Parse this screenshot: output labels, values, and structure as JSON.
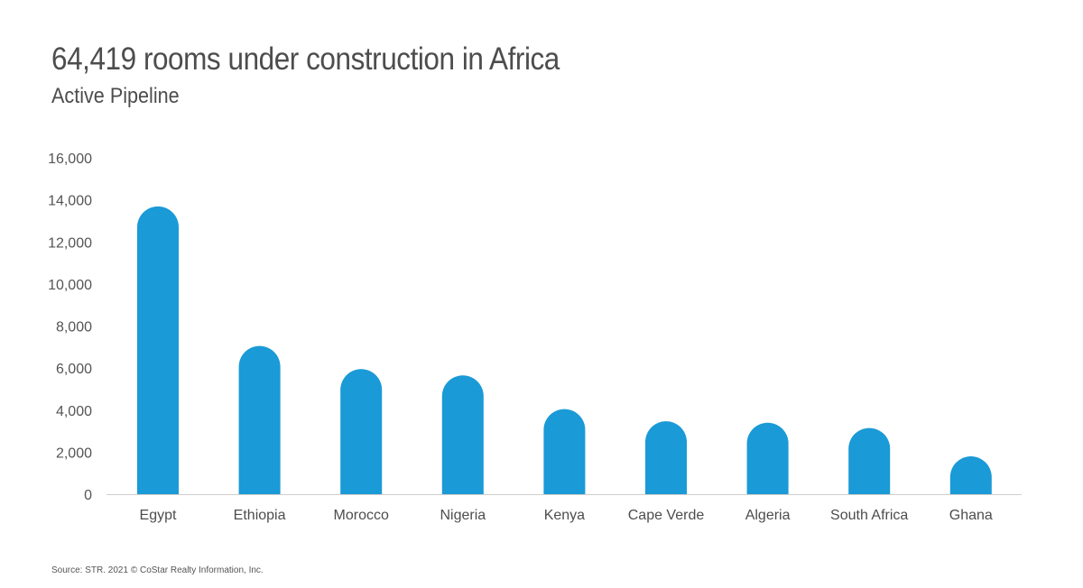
{
  "chart_data": {
    "type": "bar",
    "title": "64,419 rooms under construction in Africa",
    "subtitle": "Active Pipeline",
    "xlabel": "",
    "ylabel": "",
    "categories": [
      "Egypt",
      "Ethiopia",
      "Morocco",
      "Nigeria",
      "Kenya",
      "Cape Verde",
      "Algeria",
      "South Africa",
      "Ghana"
    ],
    "values": [
      13690,
      7050,
      5950,
      5650,
      4050,
      3470,
      3400,
      3150,
      1800
    ],
    "ylim": [
      0,
      16000
    ],
    "yticks": [
      0,
      2000,
      4000,
      6000,
      8000,
      10000,
      12000,
      14000,
      16000
    ],
    "ytick_labels": [
      "0",
      "2,000",
      "4,000",
      "6,000",
      "8,000",
      "10,000",
      "12,000",
      "14,000",
      "16,000"
    ],
    "grid": false,
    "legend": "none",
    "bar_color": "#1a9ad6",
    "bar_style": "rounded-top",
    "source": "Source: STR. 2021 © CoStar Realty Information, Inc."
  }
}
